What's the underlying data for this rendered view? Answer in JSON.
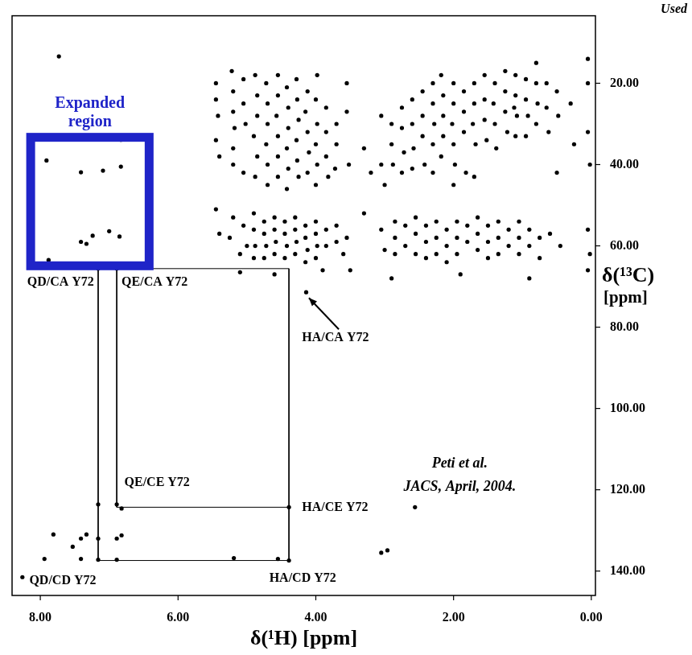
{
  "chart_data": {
    "type": "scatter",
    "subtitle": "Used",
    "x_label": "δ(¹H) [ppm]",
    "y_label": "δ(¹³C) [ppm]",
    "xlim": [
      8.41,
      -0.06
    ],
    "ylim": [
      3.4,
      146
    ],
    "xticks": [
      {
        "value": 8,
        "label": "8.00"
      },
      {
        "value": 6,
        "label": "6.00"
      },
      {
        "value": 4,
        "label": "4.00"
      },
      {
        "value": 2,
        "label": "2.00"
      },
      {
        "value": 0,
        "label": "0.00"
      }
    ],
    "yticks": [
      {
        "value": 20,
        "label": "20.00"
      },
      {
        "value": 40,
        "label": "40.00"
      },
      {
        "value": 60,
        "label": "60.00"
      },
      {
        "value": 80,
        "label": "80.00"
      },
      {
        "value": 100,
        "label": "100.00"
      },
      {
        "value": 120,
        "label": "120.00"
      },
      {
        "value": 140,
        "label": "140.00"
      }
    ],
    "grid": false,
    "color": "#000000",
    "marker": "circle",
    "line_style": "solid",
    "points": [
      [
        5.45,
        20
      ],
      [
        5.45,
        24
      ],
      [
        5.42,
        28
      ],
      [
        5.45,
        34
      ],
      [
        5.4,
        38
      ],
      [
        5.22,
        17
      ],
      [
        5.2,
        22
      ],
      [
        5.2,
        27
      ],
      [
        5.18,
        31
      ],
      [
        5.2,
        36
      ],
      [
        5.2,
        40
      ],
      [
        5.05,
        19
      ],
      [
        5.05,
        25
      ],
      [
        5.02,
        30
      ],
      [
        5.05,
        42
      ],
      [
        4.88,
        18
      ],
      [
        4.85,
        23
      ],
      [
        4.85,
        28
      ],
      [
        4.9,
        33
      ],
      [
        4.85,
        38
      ],
      [
        4.88,
        43
      ],
      [
        4.72,
        20
      ],
      [
        4.7,
        25
      ],
      [
        4.7,
        30
      ],
      [
        4.72,
        35
      ],
      [
        4.7,
        40
      ],
      [
        4.7,
        45
      ],
      [
        4.55,
        18
      ],
      [
        4.55,
        23
      ],
      [
        4.57,
        28
      ],
      [
        4.55,
        33
      ],
      [
        4.55,
        38
      ],
      [
        4.55,
        43
      ],
      [
        4.42,
        21
      ],
      [
        4.4,
        26
      ],
      [
        4.4,
        31
      ],
      [
        4.42,
        36
      ],
      [
        4.4,
        41
      ],
      [
        4.42,
        46
      ],
      [
        4.28,
        19
      ],
      [
        4.27,
        24
      ],
      [
        4.25,
        29
      ],
      [
        4.28,
        34
      ],
      [
        4.27,
        39
      ],
      [
        4.25,
        43
      ],
      [
        4.12,
        22
      ],
      [
        4.15,
        27
      ],
      [
        4.12,
        32
      ],
      [
        4.1,
        37
      ],
      [
        4.12,
        42
      ],
      [
        3.98,
        18
      ],
      [
        4.0,
        24
      ],
      [
        3.98,
        30
      ],
      [
        4.0,
        35
      ],
      [
        3.98,
        40
      ],
      [
        4.0,
        45
      ],
      [
        3.85,
        26
      ],
      [
        3.85,
        32
      ],
      [
        3.85,
        38
      ],
      [
        3.82,
        43
      ],
      [
        3.7,
        30
      ],
      [
        3.7,
        35
      ],
      [
        3.72,
        41
      ],
      [
        3.55,
        20
      ],
      [
        3.55,
        27
      ],
      [
        3.52,
        40
      ],
      [
        3.3,
        36
      ],
      [
        3.2,
        42
      ],
      [
        3.05,
        28
      ],
      [
        3.05,
        40
      ],
      [
        3.0,
        45
      ],
      [
        2.9,
        30
      ],
      [
        2.9,
        35
      ],
      [
        2.88,
        40
      ],
      [
        2.75,
        26
      ],
      [
        2.75,
        31
      ],
      [
        2.72,
        37
      ],
      [
        2.75,
        42
      ],
      [
        2.6,
        24
      ],
      [
        2.6,
        30
      ],
      [
        2.58,
        36
      ],
      [
        2.6,
        41
      ],
      [
        2.45,
        22
      ],
      [
        2.45,
        28
      ],
      [
        2.45,
        33
      ],
      [
        2.42,
        40
      ],
      [
        2.3,
        20
      ],
      [
        2.3,
        25
      ],
      [
        2.28,
        30
      ],
      [
        2.3,
        35
      ],
      [
        2.3,
        42
      ],
      [
        2.18,
        18
      ],
      [
        2.15,
        23
      ],
      [
        2.15,
        28
      ],
      [
        2.15,
        33
      ],
      [
        2.18,
        38
      ],
      [
        2.0,
        20
      ],
      [
        2.0,
        25
      ],
      [
        2.02,
        30
      ],
      [
        2.0,
        35
      ],
      [
        1.98,
        40
      ],
      [
        2.0,
        45
      ],
      [
        1.85,
        22
      ],
      [
        1.85,
        27
      ],
      [
        1.85,
        32
      ],
      [
        1.82,
        42
      ],
      [
        1.7,
        20
      ],
      [
        1.7,
        25
      ],
      [
        1.72,
        30
      ],
      [
        1.68,
        35
      ],
      [
        1.7,
        43
      ],
      [
        1.55,
        18
      ],
      [
        1.55,
        24
      ],
      [
        1.55,
        29
      ],
      [
        1.52,
        34
      ],
      [
        1.4,
        20
      ],
      [
        1.42,
        25
      ],
      [
        1.4,
        30
      ],
      [
        1.38,
        36
      ],
      [
        1.25,
        17
      ],
      [
        1.25,
        22
      ],
      [
        1.25,
        27
      ],
      [
        1.22,
        32
      ],
      [
        1.1,
        18
      ],
      [
        1.1,
        23
      ],
      [
        1.08,
        28
      ],
      [
        1.1,
        33
      ],
      [
        1.12,
        26
      ],
      [
        0.95,
        19
      ],
      [
        0.95,
        24
      ],
      [
        0.92,
        28
      ],
      [
        0.95,
        33
      ],
      [
        0.8,
        15
      ],
      [
        0.8,
        20
      ],
      [
        0.78,
        25
      ],
      [
        0.8,
        30
      ],
      [
        0.65,
        20
      ],
      [
        0.65,
        26
      ],
      [
        0.62,
        32
      ],
      [
        0.5,
        22
      ],
      [
        0.48,
        28
      ],
      [
        0.5,
        42
      ],
      [
        0.3,
        25
      ],
      [
        0.25,
        35
      ],
      [
        0.05,
        14
      ],
      [
        0.05,
        20
      ],
      [
        0.02,
        40
      ],
      [
        0.05,
        32
      ],
      [
        5.45,
        51
      ],
      [
        5.4,
        57
      ],
      [
        5.2,
        53
      ],
      [
        5.25,
        58
      ],
      [
        5.05,
        55
      ],
      [
        5.0,
        60
      ],
      [
        5.1,
        62
      ],
      [
        4.9,
        52
      ],
      [
        4.9,
        56
      ],
      [
        4.88,
        60
      ],
      [
        4.9,
        63
      ],
      [
        4.75,
        54
      ],
      [
        4.75,
        57
      ],
      [
        4.72,
        60
      ],
      [
        4.75,
        63
      ],
      [
        4.6,
        53
      ],
      [
        4.6,
        56
      ],
      [
        4.58,
        59
      ],
      [
        4.6,
        62
      ],
      [
        4.45,
        54
      ],
      [
        4.45,
        57
      ],
      [
        4.42,
        60
      ],
      [
        4.45,
        63
      ],
      [
        4.3,
        53
      ],
      [
        4.3,
        56
      ],
      [
        4.28,
        59
      ],
      [
        4.3,
        62
      ],
      [
        4.15,
        55
      ],
      [
        4.15,
        58
      ],
      [
        4.12,
        61
      ],
      [
        4.15,
        64
      ],
      [
        4.0,
        54
      ],
      [
        4.0,
        57
      ],
      [
        3.98,
        60
      ],
      [
        4.0,
        63
      ],
      [
        3.85,
        56
      ],
      [
        3.85,
        60
      ],
      [
        3.7,
        55
      ],
      [
        3.7,
        59
      ],
      [
        3.55,
        58
      ],
      [
        3.6,
        62
      ],
      [
        3.9,
        66
      ],
      [
        4.14,
        71.4
      ],
      [
        4.6,
        67
      ],
      [
        5.1,
        66.5
      ],
      [
        3.05,
        56
      ],
      [
        3.0,
        61
      ],
      [
        2.85,
        54
      ],
      [
        2.85,
        58
      ],
      [
        2.85,
        62
      ],
      [
        2.7,
        55
      ],
      [
        2.7,
        60
      ],
      [
        2.55,
        53
      ],
      [
        2.55,
        57
      ],
      [
        2.55,
        62
      ],
      [
        2.4,
        55
      ],
      [
        2.4,
        59
      ],
      [
        2.4,
        63
      ],
      [
        2.25,
        54
      ],
      [
        2.25,
        58
      ],
      [
        2.25,
        62
      ],
      [
        2.1,
        56
      ],
      [
        2.1,
        60
      ],
      [
        2.1,
        64
      ],
      [
        1.95,
        54
      ],
      [
        1.95,
        58
      ],
      [
        1.95,
        62
      ],
      [
        1.8,
        55
      ],
      [
        1.8,
        59
      ],
      [
        1.65,
        53
      ],
      [
        1.65,
        57
      ],
      [
        1.65,
        61
      ],
      [
        1.5,
        55
      ],
      [
        1.5,
        59
      ],
      [
        1.5,
        63
      ],
      [
        1.35,
        54
      ],
      [
        1.35,
        58
      ],
      [
        1.35,
        62
      ],
      [
        1.2,
        56
      ],
      [
        1.2,
        60
      ],
      [
        1.05,
        54
      ],
      [
        1.05,
        58
      ],
      [
        1.05,
        62
      ],
      [
        0.9,
        56
      ],
      [
        0.9,
        60
      ],
      [
        0.75,
        58
      ],
      [
        0.75,
        63
      ],
      [
        0.6,
        57
      ],
      [
        0.45,
        60
      ],
      [
        0.05,
        56
      ],
      [
        0.05,
        66
      ],
      [
        0.02,
        62
      ],
      [
        3.3,
        52
      ],
      [
        3.5,
        66
      ],
      [
        2.9,
        68
      ],
      [
        0.9,
        68
      ],
      [
        1.9,
        67
      ],
      [
        7.91,
        39
      ],
      [
        7.41,
        41.9
      ],
      [
        7.09,
        41.5
      ],
      [
        6.83,
        40.5
      ],
      [
        6.83,
        33.9
      ],
      [
        7.41,
        59
      ],
      [
        7.33,
        59.5
      ],
      [
        7.24,
        57.5
      ],
      [
        7.0,
        56.4
      ],
      [
        6.85,
        57.7
      ],
      [
        7.88,
        63.5
      ],
      [
        7.65,
        64.9
      ],
      [
        7.16,
        65.6
      ],
      [
        6.89,
        65.6
      ],
      [
        7.73,
        13.4
      ],
      [
        7.16,
        123.6
      ],
      [
        6.89,
        123.6
      ],
      [
        6.82,
        124.6
      ],
      [
        7.81,
        131
      ],
      [
        7.41,
        132
      ],
      [
        7.33,
        131
      ],
      [
        7.16,
        132
      ],
      [
        6.89,
        132
      ],
      [
        6.82,
        131.2
      ],
      [
        7.94,
        137
      ],
      [
        7.41,
        137
      ],
      [
        7.16,
        137.2
      ],
      [
        6.89,
        137.2
      ],
      [
        7.53,
        134
      ],
      [
        8.26,
        141.5
      ],
      [
        4.39,
        124.3
      ],
      [
        4.39,
        137.4
      ],
      [
        4.55,
        137
      ],
      [
        5.19,
        136.8
      ],
      [
        2.96,
        134.9
      ],
      [
        3.05,
        135.5
      ],
      [
        2.56,
        124.3
      ]
    ],
    "lines": [
      {
        "x": [
          7.16,
          7.16
        ],
        "y": [
          65.6,
          137.4
        ]
      },
      {
        "x": [
          6.89,
          6.89
        ],
        "y": [
          65.6,
          124.3
        ]
      },
      {
        "x": [
          4.39,
          4.39
        ],
        "y": [
          65.6,
          137.4
        ]
      },
      {
        "x": [
          7.16,
          4.39
        ],
        "y": [
          65.6,
          65.6
        ]
      },
      {
        "x": [
          6.89,
          4.39
        ],
        "y": [
          124.3,
          124.3
        ]
      },
      {
        "x": [
          7.16,
          4.39
        ],
        "y": [
          137.4,
          137.4
        ]
      }
    ],
    "regions": [
      {
        "label": "Expanded region",
        "color": "#1f24c8",
        "x": [
          8.14,
          6.42
        ],
        "y": [
          33.3,
          64.9
        ]
      }
    ],
    "annotations": [
      {
        "text": "QD/CA Y72",
        "x": 7.22,
        "y": 69,
        "align": "right"
      },
      {
        "text": "QE/CA Y72",
        "x": 6.82,
        "y": 69,
        "align": "left"
      },
      {
        "text": "HA/CA Y72",
        "x": 4.2,
        "y": 82.7,
        "align": "left",
        "arrow_to": [
          4.1,
          72.8
        ]
      },
      {
        "text": "QE/CE Y72",
        "x": 6.78,
        "y": 118.3,
        "align": "left"
      },
      {
        "text": "HA/CE Y72",
        "x": 4.2,
        "y": 124.3,
        "align": "left"
      },
      {
        "text": "HA/CD Y72",
        "x": 4.19,
        "y": 141.9,
        "align": "center"
      },
      {
        "text": "QD/CD Y72",
        "x": 8.16,
        "y": 142.5,
        "align": "left"
      }
    ],
    "source": {
      "text": [
        "Peti et al.",
        "JACS, April, 2004."
      ],
      "x": 1.91,
      "y": [
        113.6,
        119.4
      ]
    }
  }
}
